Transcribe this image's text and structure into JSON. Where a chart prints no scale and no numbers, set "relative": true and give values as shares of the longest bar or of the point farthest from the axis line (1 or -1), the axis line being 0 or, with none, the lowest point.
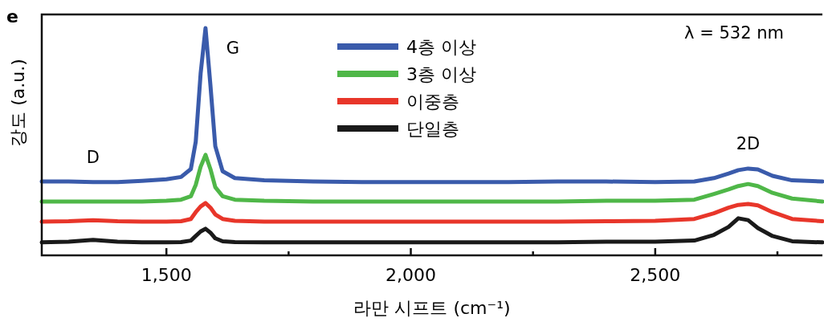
{
  "chart_data": {
    "type": "line",
    "title": "e",
    "xlabel": "라만 시프트 (cm⁻¹)",
    "ylabel": "강도 (a.u.)",
    "relative": true,
    "xlim": [
      1245,
      2842
    ],
    "xticks": [
      {
        "value": 1500,
        "label": "1,500"
      },
      {
        "value": 1750,
        "label": null
      },
      {
        "value": 2000,
        "label": "2,000"
      },
      {
        "value": 2250,
        "label": null
      },
      {
        "value": 2500,
        "label": "2,500"
      },
      {
        "value": 2750,
        "label": null
      }
    ],
    "x": [
      1245,
      1300,
      1350,
      1400,
      1450,
      1500,
      1530,
      1550,
      1560,
      1570,
      1580,
      1590,
      1600,
      1615,
      1640,
      1700,
      1800,
      1900,
      2000,
      2100,
      2200,
      2300,
      2400,
      2500,
      2580,
      2620,
      2650,
      2670,
      2690,
      2710,
      2740,
      2780,
      2842
    ],
    "series": [
      {
        "name": "4층 이상",
        "color": "#3a5bab",
        "values": [
          0.325,
          0.325,
          0.322,
          0.322,
          0.328,
          0.335,
          0.345,
          0.38,
          0.5,
          0.8,
          1.0,
          0.75,
          0.48,
          0.37,
          0.34,
          0.33,
          0.325,
          0.322,
          0.322,
          0.322,
          0.322,
          0.325,
          0.325,
          0.322,
          0.325,
          0.34,
          0.36,
          0.375,
          0.382,
          0.378,
          0.35,
          0.33,
          0.325
        ]
      },
      {
        "name": "3층 이상",
        "color": "#4fb748",
        "values": [
          0.237,
          0.237,
          0.237,
          0.237,
          0.237,
          0.24,
          0.245,
          0.26,
          0.31,
          0.39,
          0.442,
          0.38,
          0.3,
          0.26,
          0.245,
          0.24,
          0.237,
          0.237,
          0.237,
          0.237,
          0.237,
          0.237,
          0.24,
          0.24,
          0.245,
          0.27,
          0.29,
          0.305,
          0.314,
          0.305,
          0.275,
          0.25,
          0.237
        ]
      },
      {
        "name": "이중층",
        "color": "#e8362a",
        "values": [
          0.148,
          0.15,
          0.155,
          0.15,
          0.148,
          0.148,
          0.15,
          0.16,
          0.19,
          0.215,
          0.23,
          0.21,
          0.18,
          0.16,
          0.152,
          0.148,
          0.148,
          0.148,
          0.148,
          0.148,
          0.148,
          0.148,
          0.15,
          0.152,
          0.16,
          0.185,
          0.21,
          0.222,
          0.226,
          0.22,
          0.19,
          0.16,
          0.15
        ]
      },
      {
        "name": "단일층",
        "color": "#1a1a1a",
        "values": [
          0.057,
          0.06,
          0.068,
          0.06,
          0.057,
          0.057,
          0.058,
          0.065,
          0.085,
          0.105,
          0.117,
          0.1,
          0.075,
          0.062,
          0.058,
          0.057,
          0.057,
          0.057,
          0.057,
          0.057,
          0.057,
          0.057,
          0.06,
          0.06,
          0.065,
          0.09,
          0.125,
          0.163,
          0.155,
          0.12,
          0.085,
          0.062,
          0.057
        ]
      }
    ],
    "annotations": [
      {
        "text": "G",
        "x": 1580,
        "y": 1.0
      },
      {
        "text": "D",
        "x": 1350,
        "y": 0.322
      },
      {
        "text": "2D",
        "x": 2690,
        "y": 0.382
      },
      "λ = 532 nm"
    ],
    "legend": "top",
    "line_style": "solid"
  }
}
